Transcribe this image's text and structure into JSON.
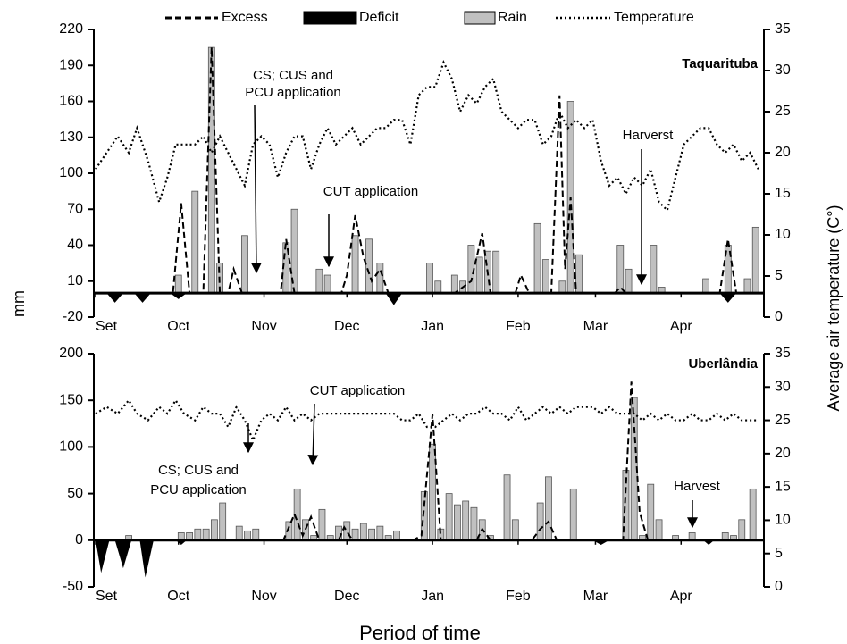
{
  "chart_data": {
    "type": "combo",
    "xlabel": "Period of time",
    "ylabel": "mm",
    "y2label": "Average air temperature (C°)",
    "legend": [
      {
        "name": "Excess",
        "color": "#000000",
        "style": "dashed"
      },
      {
        "name": "Deficit",
        "color": "#000000",
        "style": "area"
      },
      {
        "name": "Rain",
        "color": "#c0c0c0",
        "style": "bar"
      },
      {
        "name": "Temperature",
        "color": "#000000",
        "style": "dotted"
      }
    ],
    "panels": [
      {
        "title": "Taquarituba",
        "xlim": [
          0,
          242
        ],
        "xticks": [
          {
            "value": 0,
            "label": "Set"
          },
          {
            "value": 30,
            "label": "Oct"
          },
          {
            "value": 61,
            "label": "Nov"
          },
          {
            "value": 91,
            "label": "Dec"
          },
          {
            "value": 122,
            "label": "Jan"
          },
          {
            "value": 153,
            "label": "Feb"
          },
          {
            "value": 181,
            "label": "Mar"
          },
          {
            "value": 212,
            "label": "Apr"
          }
        ],
        "ylim": [
          -20,
          220
        ],
        "yticks": [
          -20,
          10,
          40,
          70,
          100,
          130,
          160,
          190,
          220
        ],
        "y2lim": [
          0,
          35
        ],
        "y2ticks": [
          0,
          5,
          10,
          15,
          20,
          25,
          30,
          35
        ],
        "excess": {
          "x": [
            0,
            28,
            31,
            34,
            39,
            42,
            45,
            48,
            50,
            53,
            63,
            67,
            69,
            72,
            89,
            91,
            94,
            97,
            100,
            103,
            106,
            130,
            136,
            140,
            143,
            152,
            154,
            157,
            165,
            168,
            170,
            172,
            174,
            176,
            188,
            190,
            192,
            226,
            229,
            232,
            241
          ],
          "values": [
            0,
            0,
            75,
            0,
            0,
            205,
            0,
            0,
            20,
            0,
            0,
            0,
            45,
            0,
            0,
            15,
            65,
            30,
            10,
            20,
            0,
            0,
            10,
            50,
            0,
            0,
            15,
            0,
            0,
            165,
            20,
            80,
            0,
            0,
            0,
            5,
            0,
            0,
            45,
            0,
            0
          ]
        },
        "deficit": {
          "x": [
            4,
            7,
            10,
            14,
            17,
            20,
            27,
            30,
            33,
            105,
            108,
            111,
            226,
            229,
            232
          ],
          "values": [
            0,
            -8,
            0,
            0,
            -8,
            0,
            0,
            -5,
            0,
            0,
            -10,
            0,
            0,
            -8,
            0
          ]
        },
        "rain": {
          "x": [
            30,
            36,
            42,
            45,
            54,
            69,
            72,
            81,
            84,
            94,
            99,
            103,
            121,
            124,
            130,
            133,
            136,
            139,
            142,
            145,
            160,
            163,
            169,
            172,
            175,
            190,
            193,
            202,
            205,
            221,
            229,
            236,
            239
          ],
          "values": [
            15,
            85,
            205,
            25,
            48,
            42,
            70,
            20,
            15,
            48,
            45,
            25,
            25,
            10,
            15,
            10,
            40,
            30,
            35,
            35,
            58,
            28,
            10,
            160,
            32,
            40,
            20,
            40,
            5,
            12,
            40,
            12,
            55
          ]
        },
        "temperature": {
          "x": [
            0,
            4,
            8,
            12,
            15,
            19,
            23,
            26,
            29,
            32,
            36,
            39,
            42,
            45,
            48,
            51,
            54,
            57,
            60,
            63,
            66,
            69,
            72,
            75,
            78,
            81,
            84,
            87,
            90,
            93,
            96,
            99,
            102,
            105,
            108,
            111,
            114,
            117,
            120,
            123,
            126,
            129,
            132,
            135,
            138,
            141,
            144,
            147,
            150,
            153,
            156,
            159,
            162,
            165,
            168,
            171,
            174,
            177,
            180,
            183,
            186,
            189,
            192,
            195,
            198,
            201,
            204,
            207,
            210,
            213,
            216,
            219,
            222,
            225,
            228,
            231,
            234,
            237,
            240
          ],
          "values": [
            18,
            20,
            22,
            20,
            23,
            19,
            14,
            17,
            21,
            21,
            21,
            22,
            20,
            22,
            20,
            18,
            16,
            21,
            22,
            21,
            17,
            20,
            22,
            22,
            18,
            21,
            23,
            21,
            22,
            23,
            21,
            22,
            23,
            23,
            24,
            24,
            21,
            27,
            28,
            28,
            31,
            29,
            25,
            27,
            26,
            28,
            29,
            25,
            24,
            23,
            24,
            24,
            21,
            22,
            25,
            23,
            24,
            23,
            24,
            19,
            16,
            17,
            15,
            17,
            16,
            18,
            14,
            13,
            17,
            21,
            22,
            23,
            23,
            21,
            20,
            21,
            19,
            20,
            18
          ]
        },
        "annotations": [
          {
            "lines": [
              "CS; CUS and",
              "PCU application"
            ]
          },
          {
            "lines": [
              "CUT application"
            ]
          },
          {
            "lines": [
              "Harverst"
            ]
          }
        ]
      },
      {
        "title": "Uberlândia",
        "xlim": [
          0,
          242
        ],
        "xticks": [
          {
            "value": 0,
            "label": "Set"
          },
          {
            "value": 30,
            "label": "Oct"
          },
          {
            "value": 61,
            "label": "Nov"
          },
          {
            "value": 91,
            "label": "Dec"
          },
          {
            "value": 122,
            "label": "Jan"
          },
          {
            "value": 153,
            "label": "Feb"
          },
          {
            "value": 181,
            "label": "Mar"
          },
          {
            "value": 212,
            "label": "Apr"
          }
        ],
        "ylim": [
          -50,
          200
        ],
        "yticks": [
          -50,
          0,
          50,
          100,
          150,
          200
        ],
        "y2lim": [
          0,
          35
        ],
        "y2ticks": [
          0,
          5,
          10,
          15,
          20,
          25,
          30,
          35
        ],
        "excess": {
          "x": [
            0,
            65,
            68,
            72,
            75,
            78,
            81,
            88,
            90,
            93,
            110,
            115,
            118,
            122,
            125,
            136,
            138,
            140,
            143,
            155,
            158,
            161,
            164,
            167,
            170,
            188,
            191,
            194,
            197,
            200,
            241
          ],
          "values": [
            0,
            0,
            0,
            28,
            5,
            25,
            0,
            0,
            14,
            0,
            0,
            0,
            5,
            135,
            0,
            0,
            0,
            12,
            0,
            0,
            0,
            12,
            20,
            0,
            0,
            0,
            0,
            170,
            30,
            0,
            0
          ]
        },
        "deficit": {
          "x": [
            0,
            2,
            5,
            7,
            10,
            13,
            16,
            18,
            21,
            29,
            31,
            33,
            180,
            183,
            186,
            220,
            222,
            224
          ],
          "values": [
            0,
            -35,
            0,
            0,
            -30,
            0,
            0,
            -40,
            0,
            0,
            -5,
            0,
            0,
            -5,
            0,
            0,
            -5,
            0
          ]
        },
        "rain": {
          "x": [
            12,
            31,
            34,
            37,
            40,
            43,
            46,
            52,
            55,
            58,
            70,
            73,
            76,
            79,
            82,
            85,
            88,
            91,
            94,
            97,
            100,
            103,
            106,
            109,
            119,
            122,
            125,
            128,
            131,
            134,
            137,
            140,
            143,
            149,
            152,
            161,
            164,
            173,
            192,
            195,
            198,
            201,
            204,
            210,
            216,
            228,
            231,
            234,
            238
          ],
          "values": [
            5,
            8,
            8,
            12,
            12,
            22,
            40,
            15,
            10,
            12,
            20,
            55,
            22,
            5,
            33,
            5,
            15,
            20,
            12,
            18,
            12,
            15,
            5,
            10,
            52,
            103,
            12,
            50,
            38,
            42,
            35,
            22,
            5,
            70,
            22,
            40,
            68,
            55,
            75,
            153,
            5,
            60,
            22,
            5,
            8,
            8,
            5,
            22,
            55
          ]
        },
        "temperature": {
          "x": [
            0,
            4,
            8,
            12,
            15,
            19,
            23,
            26,
            29,
            32,
            36,
            39,
            42,
            45,
            48,
            51,
            54,
            57,
            60,
            63,
            66,
            69,
            72,
            75,
            78,
            81,
            84,
            87,
            90,
            93,
            96,
            99,
            102,
            105,
            108,
            111,
            114,
            117,
            120,
            123,
            126,
            129,
            132,
            135,
            138,
            141,
            144,
            147,
            150,
            153,
            156,
            159,
            162,
            165,
            168,
            171,
            174,
            177,
            180,
            183,
            186,
            189,
            192,
            195,
            198,
            201,
            204,
            207,
            210,
            213,
            216,
            219,
            222,
            225,
            228,
            231,
            234,
            237,
            240
          ],
          "values": [
            26,
            27,
            26,
            28,
            26,
            25,
            27,
            26,
            28,
            26,
            25,
            27,
            26,
            26,
            24,
            27,
            25,
            22,
            25,
            26,
            25,
            27,
            25,
            26,
            25,
            26,
            26,
            26,
            26,
            26,
            26,
            26,
            26,
            26,
            26,
            25,
            25,
            26,
            24,
            24,
            25,
            26,
            25,
            26,
            26,
            27,
            26,
            26,
            25,
            27,
            25,
            26,
            27,
            26,
            27,
            26,
            27,
            27,
            27,
            26,
            27,
            26,
            26,
            26,
            25,
            26,
            25,
            26,
            25,
            25,
            26,
            25,
            25,
            26,
            25,
            26,
            25,
            25,
            25
          ]
        },
        "annotations": [
          {
            "lines": [
              "CS; CUS and",
              "PCU application"
            ]
          },
          {
            "lines": [
              "CUT application"
            ]
          },
          {
            "lines": [
              "Harvest"
            ]
          }
        ]
      }
    ]
  }
}
